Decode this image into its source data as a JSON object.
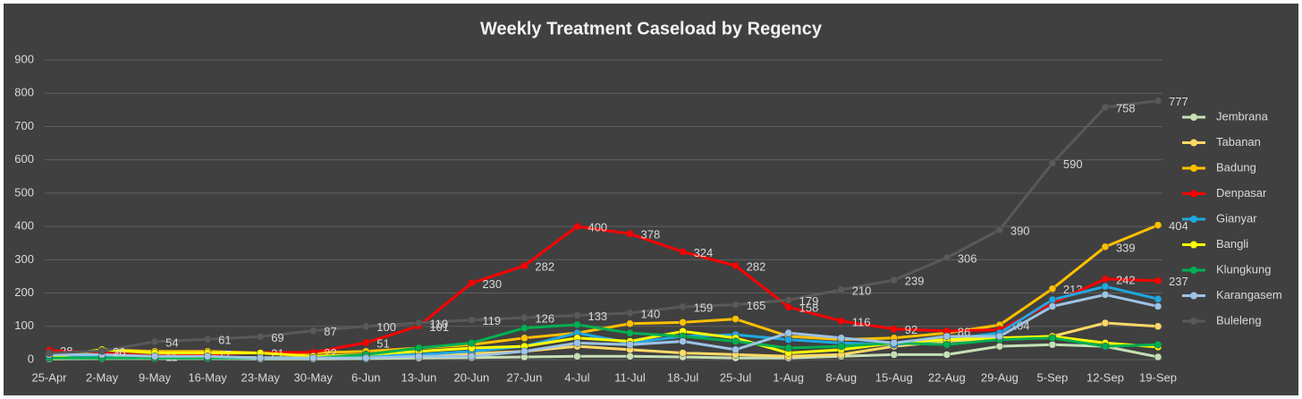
{
  "chart_data": {
    "type": "line",
    "title": "Weekly Treatment Caseload by Regency",
    "categories": [
      "25-Apr",
      "2-May",
      "9-May",
      "16-May",
      "23-May",
      "30-May",
      "6-Jun",
      "13-Jun",
      "20-Jun",
      "27-Jun",
      "4-Jul",
      "11-Jul",
      "18-Jul",
      "25-Jul",
      "1-Aug",
      "8-Aug",
      "15-Aug",
      "22-Aug",
      "29-Aug",
      "5-Sep",
      "12-Sep",
      "19-Sep"
    ],
    "ylim": [
      0,
      900
    ],
    "yticks": [
      0,
      100,
      200,
      300,
      400,
      500,
      600,
      700,
      800,
      900
    ],
    "grid": true,
    "legend": "right",
    "series": [
      {
        "name": "Jembrana",
        "color": "#c6e0b4",
        "values": [
          2,
          3,
          3,
          3,
          2,
          2,
          3,
          5,
          6,
          8,
          10,
          10,
          8,
          5,
          5,
          10,
          15,
          15,
          40,
          45,
          40,
          8
        ]
      },
      {
        "name": "Tabanan",
        "color": "#ffd966",
        "values": [
          5,
          8,
          8,
          8,
          6,
          6,
          10,
          15,
          18,
          25,
          40,
          30,
          20,
          15,
          10,
          15,
          40,
          55,
          65,
          70,
          110,
          100
        ]
      },
      {
        "name": "Badung",
        "color": "#ffc000",
        "values": [
          10,
          30,
          25,
          25,
          20,
          20,
          25,
          35,
          45,
          65,
          80,
          108,
          112,
          122,
          70,
          60,
          65,
          80,
          104,
          213,
          339,
          404
        ],
        "value_labels": [
          null,
          null,
          null,
          null,
          null,
          null,
          null,
          null,
          null,
          null,
          null,
          null,
          null,
          null,
          null,
          null,
          null,
          null,
          "104",
          "213",
          "339",
          "404"
        ]
      },
      {
        "name": "Denpasar",
        "color": "#ff0000",
        "values": [
          28,
          20,
          11,
          17,
          21,
          22,
          51,
          101,
          230,
          282,
          400,
          378,
          324,
          282,
          158,
          116,
          92,
          86,
          90,
          170,
          242,
          237
        ],
        "value_labels": [
          "28",
          "20",
          "11",
          "17",
          "21",
          "22",
          "51",
          "101",
          "230",
          "282",
          "400",
          "378",
          "324",
          "282",
          "158",
          "116",
          "92",
          "86",
          null,
          null,
          "242",
          "237"
        ]
      },
      {
        "name": "Gianyar",
        "color": "#1fa8e0",
        "values": [
          10,
          10,
          5,
          5,
          5,
          5,
          10,
          15,
          25,
          40,
          80,
          50,
          70,
          75,
          60,
          50,
          45,
          60,
          80,
          180,
          220,
          182
        ]
      },
      {
        "name": "Bangli",
        "color": "#ffff00",
        "values": [
          5,
          30,
          20,
          20,
          20,
          10,
          15,
          25,
          35,
          40,
          65,
          55,
          85,
          65,
          20,
          30,
          50,
          60,
          65,
          70,
          50,
          38
        ]
      },
      {
        "name": "Klungkung",
        "color": "#00b050",
        "values": [
          5,
          5,
          5,
          5,
          5,
          5,
          15,
          35,
          50,
          95,
          105,
          80,
          70,
          55,
          35,
          40,
          50,
          45,
          60,
          65,
          40,
          45
        ]
      },
      {
        "name": "Karangasem",
        "color": "#9dc3e6",
        "values": [
          15,
          15,
          10,
          10,
          5,
          5,
          5,
          10,
          10,
          25,
          50,
          45,
          55,
          30,
          80,
          65,
          50,
          70,
          70,
          160,
          195,
          160
        ]
      },
      {
        "name": "Buleleng",
        "color": "#595959",
        "values": [
          20,
          26,
          54,
          61,
          69,
          87,
          100,
          110,
          119,
          126,
          133,
          140,
          159,
          165,
          179,
          210,
          239,
          306,
          390,
          590,
          758,
          777
        ],
        "value_labels": [
          null,
          "26",
          "54",
          "61",
          "69",
          "87",
          "100",
          "110",
          "119",
          "126",
          "133",
          "140",
          "159",
          "165",
          "179",
          "210",
          "239",
          "306",
          "390",
          "590",
          "758",
          "777"
        ]
      }
    ]
  }
}
